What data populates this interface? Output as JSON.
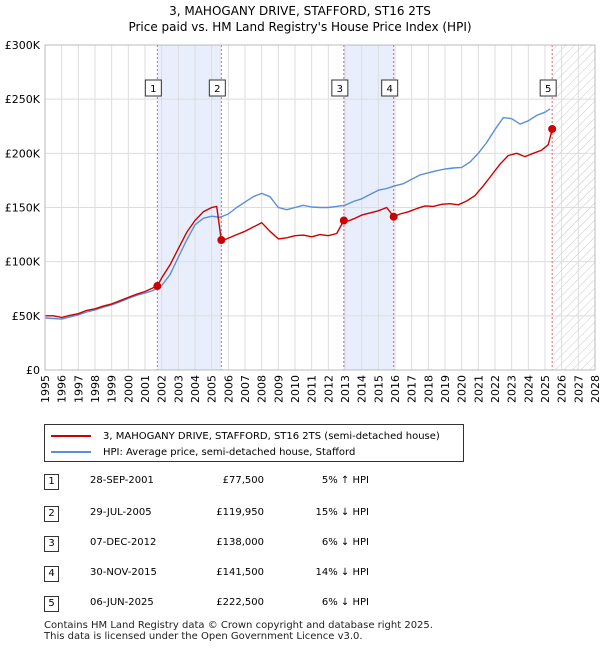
{
  "chart_data": {
    "type": "line",
    "title": "3, MAHOGANY DRIVE, STAFFORD, ST16 2TS",
    "subtitle": "Price paid vs. HM Land Registry's House Price Index (HPI)",
    "xlabel": "",
    "ylabel": "",
    "xlim": [
      1995,
      2028
    ],
    "ylim": [
      0,
      300000
    ],
    "x_ticks": [
      "1995",
      "1996",
      "1997",
      "1998",
      "1999",
      "2000",
      "2001",
      "2002",
      "2003",
      "2004",
      "2005",
      "2006",
      "2007",
      "2008",
      "2009",
      "2010",
      "2011",
      "2012",
      "2013",
      "2014",
      "2015",
      "2016",
      "2017",
      "2018",
      "2019",
      "2020",
      "2021",
      "2022",
      "2023",
      "2024",
      "2025",
      "2026",
      "2027",
      "2028"
    ],
    "y_ticks": [
      {
        "value": 0,
        "label": "£0"
      },
      {
        "value": 50000,
        "label": "£50K"
      },
      {
        "value": 100000,
        "label": "£100K"
      },
      {
        "value": 150000,
        "label": "£150K"
      },
      {
        "value": 200000,
        "label": "£200K"
      },
      {
        "value": 250000,
        "label": "£250K"
      },
      {
        "value": 300000,
        "label": "£300K"
      }
    ],
    "grid": true,
    "forecast_from": 2025.5,
    "shaded_periods": [
      [
        2001.74,
        2005.58
      ],
      [
        2012.93,
        2015.92
      ]
    ],
    "series": [
      {
        "name": "3, MAHOGANY DRIVE, STAFFORD, ST16 2TS (semi-detached house)",
        "color": "#cc0000",
        "x": [
          1995.0,
          1995.5,
          1996.0,
          1996.5,
          1997.0,
          1997.5,
          1998.0,
          1998.5,
          1999.0,
          1999.5,
          2000.0,
          2000.5,
          2001.0,
          2001.5,
          2001.74,
          2002.0,
          2002.5,
          2003.0,
          2003.5,
          2004.0,
          2004.5,
          2005.0,
          2005.3,
          2005.58,
          2005.9,
          2006.5,
          2007.0,
          2007.5,
          2008.0,
          2008.5,
          2009.0,
          2009.5,
          2010.0,
          2010.5,
          2011.0,
          2011.5,
          2012.0,
          2012.5,
          2012.93,
          2013.2,
          2013.6,
          2014.0,
          2014.5,
          2015.0,
          2015.5,
          2015.92,
          2016.3,
          2016.8,
          2017.3,
          2017.8,
          2018.3,
          2018.8,
          2019.3,
          2019.8,
          2020.3,
          2020.8,
          2021.3,
          2021.8,
          2022.3,
          2022.8,
          2023.3,
          2023.8,
          2024.3,
          2024.8,
          2025.2,
          2025.43
        ],
        "y": [
          50000,
          50000,
          48500,
          50500,
          52000,
          55000,
          56500,
          59000,
          61000,
          64000,
          67000,
          70000,
          72500,
          76000,
          77500,
          85000,
          97000,
          112000,
          127000,
          138000,
          146000,
          150000,
          151000,
          119950,
          121000,
          125000,
          128000,
          132000,
          136000,
          128000,
          121000,
          122000,
          124000,
          124500,
          123000,
          125000,
          124000,
          126000,
          138000,
          137500,
          140000,
          143000,
          145000,
          147000,
          150000,
          141500,
          144000,
          146000,
          149000,
          151500,
          151000,
          153000,
          153500,
          152500,
          156000,
          161000,
          170000,
          180000,
          190000,
          198000,
          200000,
          197000,
          200000,
          203000,
          208000,
          222500
        ]
      },
      {
        "name": "HPI: Average price, semi-detached house, Stafford",
        "color": "#5a8ed6",
        "x": [
          1995.0,
          1995.5,
          1996.0,
          1996.5,
          1997.0,
          1997.5,
          1998.0,
          1998.5,
          1999.0,
          1999.5,
          2000.0,
          2000.5,
          2001.0,
          2001.5,
          2002.0,
          2002.5,
          2003.0,
          2003.5,
          2004.0,
          2004.5,
          2005.0,
          2005.5,
          2006.0,
          2006.5,
          2007.0,
          2007.5,
          2008.0,
          2008.5,
          2009.0,
          2009.5,
          2010.0,
          2010.5,
          2011.0,
          2011.5,
          2012.0,
          2012.5,
          2013.0,
          2013.5,
          2014.0,
          2014.5,
          2015.0,
          2015.5,
          2016.0,
          2016.5,
          2017.0,
          2017.5,
          2018.0,
          2018.5,
          2019.0,
          2019.5,
          2020.0,
          2020.5,
          2021.0,
          2021.5,
          2022.0,
          2022.5,
          2023.0,
          2023.5,
          2024.0,
          2024.5,
          2025.0,
          2025.3
        ],
        "y": [
          48000,
          47500,
          47000,
          49000,
          51000,
          53500,
          55500,
          58000,
          60000,
          63000,
          66000,
          69000,
          71000,
          73500,
          78000,
          88000,
          104000,
          120000,
          134000,
          140000,
          142000,
          141000,
          144000,
          150000,
          155000,
          160000,
          163000,
          160000,
          150000,
          148000,
          150000,
          152000,
          150500,
          150000,
          150000,
          151000,
          152000,
          155500,
          158000,
          162000,
          166000,
          167500,
          170000,
          172000,
          176000,
          180000,
          182000,
          184000,
          185500,
          186500,
          187000,
          192000,
          200000,
          210000,
          222000,
          233000,
          232000,
          227000,
          230000,
          235000,
          238000,
          241000
        ]
      }
    ],
    "sales": [
      {
        "n": "1",
        "x": 2001.74,
        "y": 77500
      },
      {
        "n": "2",
        "x": 2005.58,
        "y": 119950
      },
      {
        "n": "3",
        "x": 2012.93,
        "y": 138000
      },
      {
        "n": "4",
        "x": 2015.92,
        "y": 141500
      },
      {
        "n": "5",
        "x": 2025.43,
        "y": 222500
      }
    ]
  },
  "legend": {
    "property": "3, MAHOGANY DRIVE, STAFFORD, ST16 2TS (semi-detached house)",
    "hpi": "HPI: Average price, semi-detached house, Stafford"
  },
  "table": [
    {
      "n": "1",
      "date": "28-SEP-2001",
      "price": "£77,500",
      "hpi": "5% ↑ HPI"
    },
    {
      "n": "2",
      "date": "29-JUL-2005",
      "price": "£119,950",
      "hpi": "15% ↓ HPI"
    },
    {
      "n": "3",
      "date": "07-DEC-2012",
      "price": "£138,000",
      "hpi": "6% ↓ HPI"
    },
    {
      "n": "4",
      "date": "30-NOV-2015",
      "price": "£141,500",
      "hpi": "14% ↓ HPI"
    },
    {
      "n": "5",
      "date": "06-JUN-2025",
      "price": "£222,500",
      "hpi": "6% ↓ HPI"
    }
  ],
  "footer": {
    "line1": "Contains HM Land Registry data © Crown copyright and database right 2025.",
    "line2": "This data is licensed under the Open Government Licence v3.0."
  },
  "colors": {
    "property": "#cc0000",
    "hpi": "#5a8ed6",
    "shade": "#e8eefb",
    "grid": "#dddddd"
  }
}
